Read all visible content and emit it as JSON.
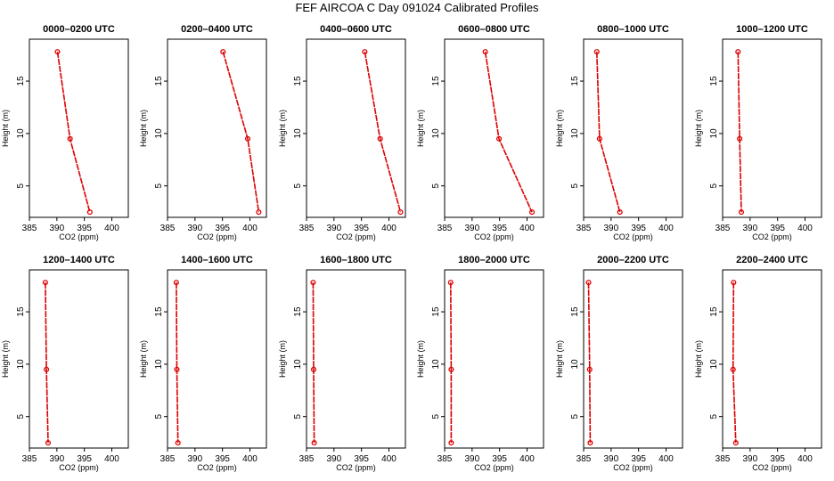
{
  "title": "FEF AIRCOA C  Day 091024  Calibrated Profiles",
  "colors": {
    "series": "#dd0000",
    "axis": "#000000",
    "background": "#ffffff"
  },
  "chart_data": [
    {
      "type": "line",
      "title": "0000–0200 UTC",
      "xlabel": "CO2 (ppm)",
      "ylabel": "Height (m)",
      "xlim": [
        385,
        403
      ],
      "ylim": [
        2,
        19
      ],
      "xticks": [
        385,
        390,
        395,
        400
      ],
      "yticks": [
        5,
        10,
        15
      ],
      "grid": false,
      "legend": "none",
      "points": [
        {
          "co2": 390.1,
          "height": 17.8
        },
        {
          "co2": 392.4,
          "height": 9.5
        },
        {
          "co2": 396.0,
          "height": 2.5
        }
      ]
    },
    {
      "type": "line",
      "title": "0200–0400 UTC",
      "xlabel": "CO2 (ppm)",
      "ylabel": "Height (m)",
      "xlim": [
        385,
        403
      ],
      "ylim": [
        2,
        19
      ],
      "xticks": [
        385,
        390,
        395,
        400
      ],
      "yticks": [
        5,
        10,
        15
      ],
      "grid": false,
      "legend": "none",
      "points": [
        {
          "co2": 395.1,
          "height": 17.8
        },
        {
          "co2": 399.6,
          "height": 9.5
        },
        {
          "co2": 401.6,
          "height": 2.5
        }
      ]
    },
    {
      "type": "line",
      "title": "0400–0600 UTC",
      "xlabel": "CO2 (ppm)",
      "ylabel": "Height (m)",
      "xlim": [
        385,
        403
      ],
      "ylim": [
        2,
        19
      ],
      "xticks": [
        385,
        390,
        395,
        400
      ],
      "yticks": [
        5,
        10,
        15
      ],
      "grid": false,
      "legend": "none",
      "points": [
        {
          "co2": 395.6,
          "height": 17.8
        },
        {
          "co2": 398.4,
          "height": 9.5
        },
        {
          "co2": 402.1,
          "height": 2.5
        }
      ]
    },
    {
      "type": "line",
      "title": "0600–0800 UTC",
      "xlabel": "CO2 (ppm)",
      "ylabel": "Height (m)",
      "xlim": [
        385,
        403
      ],
      "ylim": [
        2,
        19
      ],
      "xticks": [
        385,
        390,
        395,
        400
      ],
      "yticks": [
        5,
        10,
        15
      ],
      "grid": false,
      "legend": "none",
      "points": [
        {
          "co2": 392.4,
          "height": 17.8
        },
        {
          "co2": 394.9,
          "height": 9.5
        },
        {
          "co2": 400.9,
          "height": 2.5
        }
      ]
    },
    {
      "type": "line",
      "title": "0800–1000 UTC",
      "xlabel": "CO2 (ppm)",
      "ylabel": "Height (m)",
      "xlim": [
        385,
        403
      ],
      "ylim": [
        2,
        19
      ],
      "xticks": [
        385,
        390,
        395,
        400
      ],
      "yticks": [
        5,
        10,
        15
      ],
      "grid": false,
      "legend": "none",
      "points": [
        {
          "co2": 387.4,
          "height": 17.8
        },
        {
          "co2": 387.9,
          "height": 9.5
        },
        {
          "co2": 391.6,
          "height": 2.5
        }
      ]
    },
    {
      "type": "line",
      "title": "1000–1200 UTC",
      "xlabel": "CO2 (ppm)",
      "ylabel": "Height (m)",
      "xlim": [
        385,
        403
      ],
      "ylim": [
        2,
        19
      ],
      "xticks": [
        385,
        390,
        395,
        400
      ],
      "yticks": [
        5,
        10,
        15
      ],
      "grid": false,
      "legend": "none",
      "points": [
        {
          "co2": 387.8,
          "height": 17.8
        },
        {
          "co2": 388.1,
          "height": 9.5
        },
        {
          "co2": 388.4,
          "height": 2.5
        }
      ]
    },
    {
      "type": "line",
      "title": "1200–1400 UTC",
      "xlabel": "CO2 (ppm)",
      "ylabel": "Height (m)",
      "xlim": [
        385,
        403
      ],
      "ylim": [
        2,
        19
      ],
      "xticks": [
        385,
        390,
        395,
        400
      ],
      "yticks": [
        5,
        10,
        15
      ],
      "grid": false,
      "legend": "none",
      "points": [
        {
          "co2": 387.9,
          "height": 17.8
        },
        {
          "co2": 388.1,
          "height": 9.5
        },
        {
          "co2": 388.4,
          "height": 2.5
        }
      ]
    },
    {
      "type": "line",
      "title": "1400–1600 UTC",
      "xlabel": "CO2 (ppm)",
      "ylabel": "Height (m)",
      "xlim": [
        385,
        403
      ],
      "ylim": [
        2,
        19
      ],
      "xticks": [
        385,
        390,
        395,
        400
      ],
      "yticks": [
        5,
        10,
        15
      ],
      "grid": false,
      "legend": "none",
      "points": [
        {
          "co2": 386.6,
          "height": 17.8
        },
        {
          "co2": 386.7,
          "height": 9.5
        },
        {
          "co2": 386.9,
          "height": 2.5
        }
      ]
    },
    {
      "type": "line",
      "title": "1600–1800 UTC",
      "xlabel": "CO2 (ppm)",
      "ylabel": "Height (m)",
      "xlim": [
        385,
        403
      ],
      "ylim": [
        2,
        19
      ],
      "xticks": [
        385,
        390,
        395,
        400
      ],
      "yticks": [
        5,
        10,
        15
      ],
      "grid": false,
      "legend": "none",
      "points": [
        {
          "co2": 386.2,
          "height": 17.8
        },
        {
          "co2": 386.3,
          "height": 9.5
        },
        {
          "co2": 386.4,
          "height": 2.5
        }
      ]
    },
    {
      "type": "line",
      "title": "1800–2000 UTC",
      "xlabel": "CO2 (ppm)",
      "ylabel": "Height (m)",
      "xlim": [
        385,
        403
      ],
      "ylim": [
        2,
        19
      ],
      "xticks": [
        385,
        390,
        395,
        400
      ],
      "yticks": [
        5,
        10,
        15
      ],
      "grid": false,
      "legend": "none",
      "points": [
        {
          "co2": 386.1,
          "height": 17.8
        },
        {
          "co2": 386.2,
          "height": 9.5
        },
        {
          "co2": 386.2,
          "height": 2.5
        }
      ]
    },
    {
      "type": "line",
      "title": "2000–2200 UTC",
      "xlabel": "CO2 (ppm)",
      "ylabel": "Height (m)",
      "xlim": [
        385,
        403
      ],
      "ylim": [
        2,
        19
      ],
      "xticks": [
        385,
        390,
        395,
        400
      ],
      "yticks": [
        5,
        10,
        15
      ],
      "grid": false,
      "legend": "none",
      "points": [
        {
          "co2": 385.9,
          "height": 17.8
        },
        {
          "co2": 386.1,
          "height": 9.5
        },
        {
          "co2": 386.2,
          "height": 2.5
        }
      ]
    },
    {
      "type": "line",
      "title": "2200–2400 UTC",
      "xlabel": "CO2 (ppm)",
      "ylabel": "Height (m)",
      "xlim": [
        385,
        403
      ],
      "ylim": [
        2,
        19
      ],
      "xticks": [
        385,
        390,
        395,
        400
      ],
      "yticks": [
        5,
        10,
        15
      ],
      "grid": false,
      "legend": "none",
      "points": [
        {
          "co2": 387.0,
          "height": 17.8
        },
        {
          "co2": 386.9,
          "height": 9.5
        },
        {
          "co2": 387.4,
          "height": 2.5
        }
      ]
    }
  ]
}
